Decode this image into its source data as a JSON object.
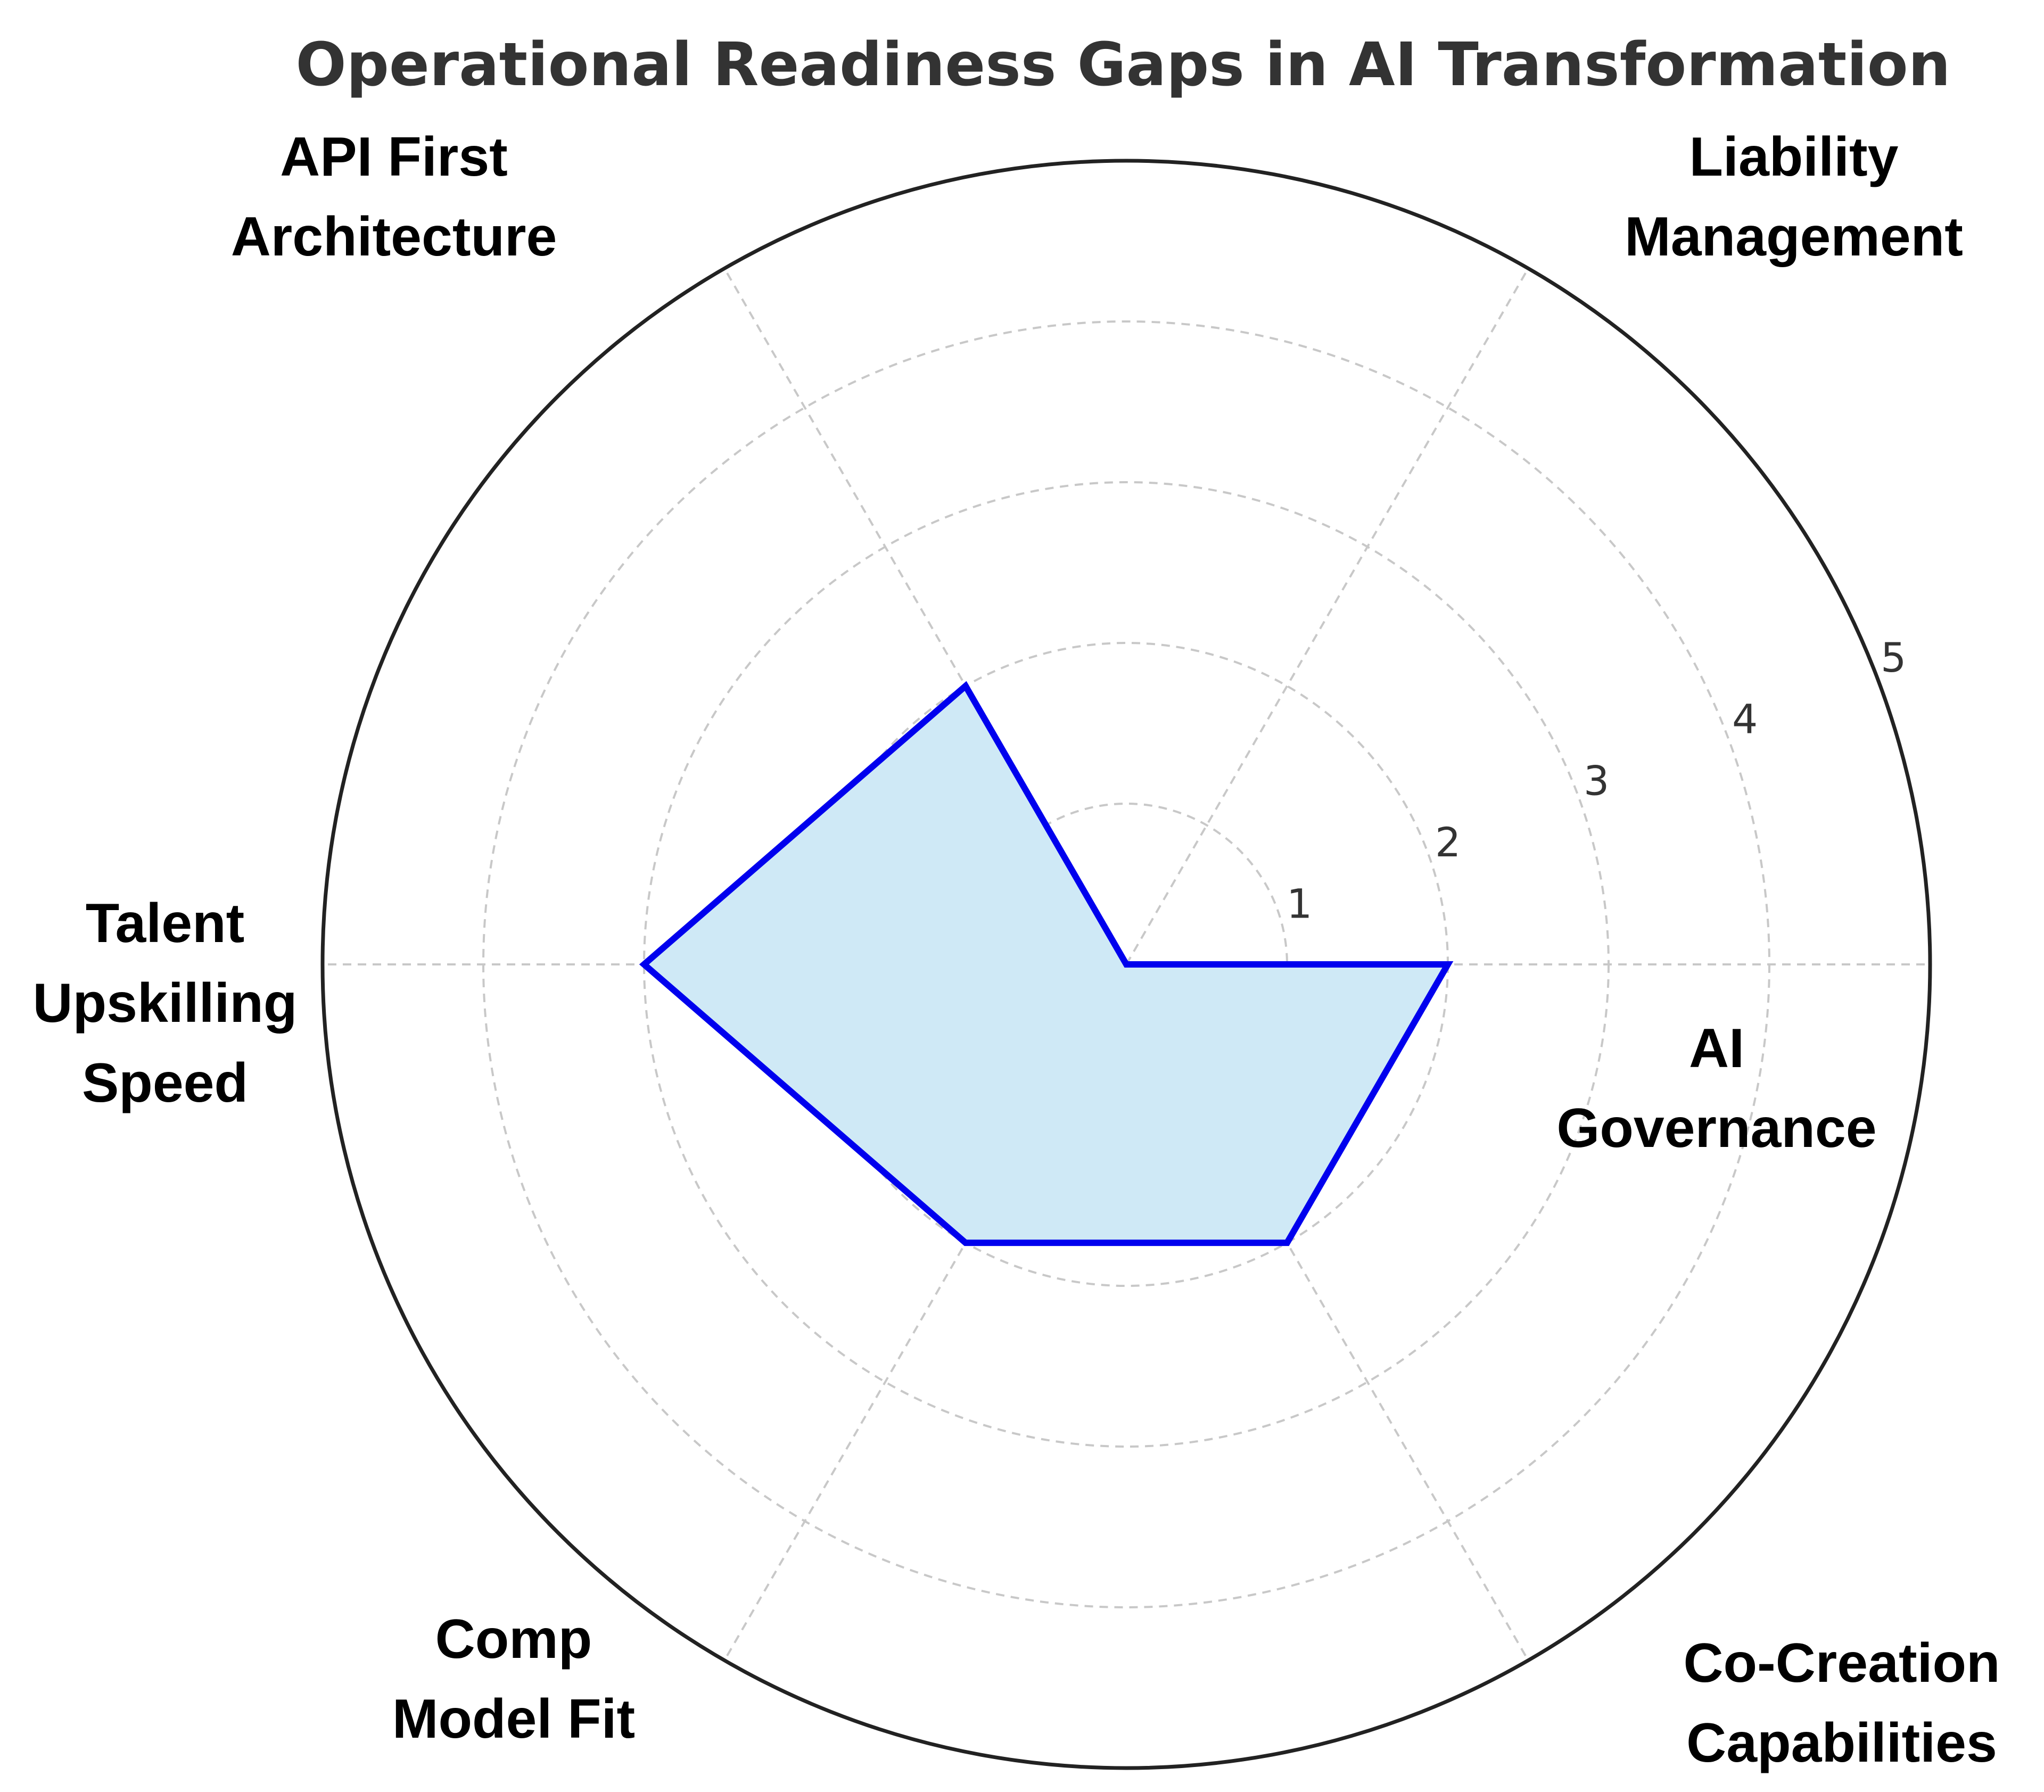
{
  "chart_data": {
    "type": "radar",
    "title": "Operational Readiness Gaps in AI Transformation",
    "categories": [
      [
        "AI",
        "Governance"
      ],
      [
        "Liability",
        "Management"
      ],
      [
        "API First",
        "Architecture"
      ],
      [
        "Talent",
        "Upskilling",
        "Speed"
      ],
      [
        "Comp",
        "Model Fit"
      ],
      [
        "Co-Creation",
        "Capabilities"
      ]
    ],
    "values": [
      2,
      0,
      2,
      3,
      2,
      2
    ],
    "radial_range": [
      0,
      5
    ],
    "radial_ticks": [
      "1",
      "2",
      "3",
      "4",
      "5"
    ],
    "grid": true,
    "colors": {
      "line": "#0000ee",
      "fill": "#cfe9f6",
      "grid": "#c8c8c8",
      "outer": "#222222"
    }
  }
}
